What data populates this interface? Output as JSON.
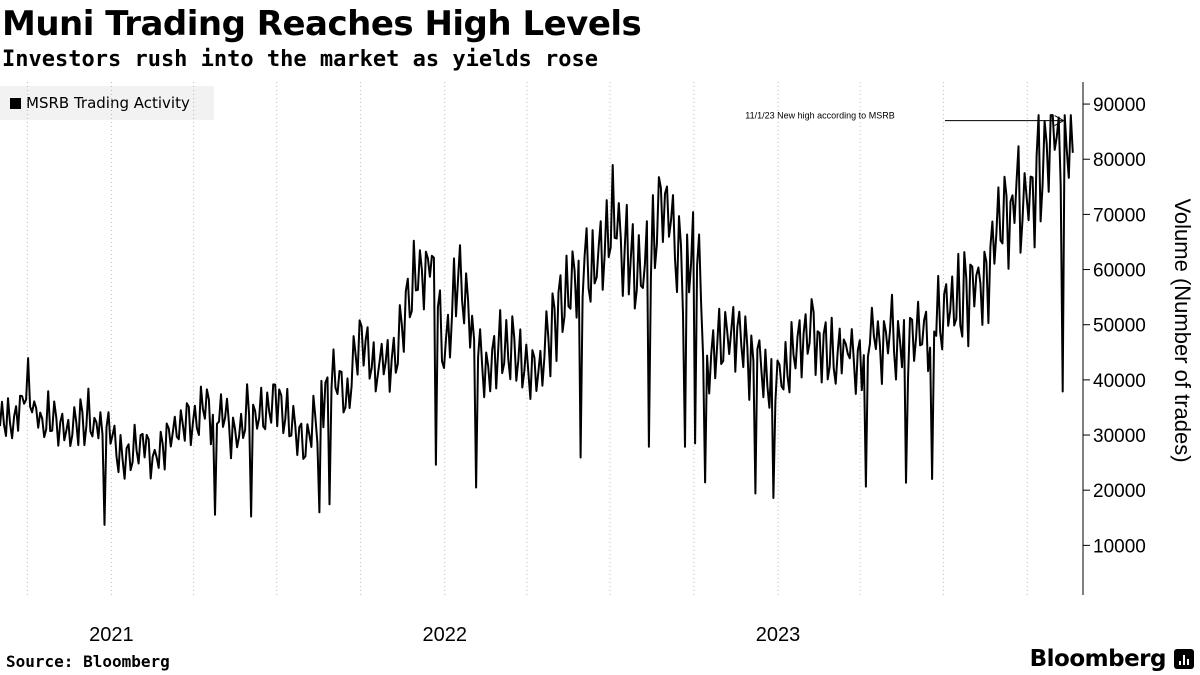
{
  "header": {
    "title": "Muni Trading Reaches High Levels",
    "subtitle": "Investors rush into the market as yields rose"
  },
  "footer": {
    "source": "Source: Bloomberg",
    "brand": "Bloomberg"
  },
  "colors": {
    "line": "#000000",
    "grid": "#bbbbbb",
    "legend_bg": "#f2f2f2"
  },
  "chart_data": {
    "type": "line",
    "legend": "MSRB Trading Activity",
    "legend_placement": "top-left",
    "ylabel": "Volume (Number of trades)",
    "y_axis_side": "right",
    "ylim": [
      1000,
      94000
    ],
    "yticks": [
      10000,
      20000,
      30000,
      40000,
      50000,
      60000,
      70000,
      80000,
      90000
    ],
    "ytick_labels": [
      "10000",
      "20000",
      "30000",
      "40000",
      "50000",
      "60000",
      "70000",
      "80000",
      "90000"
    ],
    "x_range": [
      "2020-09-01",
      "2023-12-01"
    ],
    "x_labels": [
      {
        "date": "2021-01-01",
        "label": "2021"
      },
      {
        "date": "2022-01-01",
        "label": "2022"
      },
      {
        "date": "2023-01-01",
        "label": "2023"
      }
    ],
    "grid": true,
    "grid_style": "dotted vertical quarterly",
    "annotation": {
      "text": "11/1/23 New high according to MSRB",
      "date": "2023-11-01",
      "value": 87000
    },
    "series": [
      {
        "x": [
          "2020-09-01",
          "2020-09-15",
          "2020-10-01",
          "2020-10-15",
          "2020-11-01",
          "2020-11-15",
          "2020-12-01",
          "2020-12-15",
          "2021-01-01",
          "2021-01-15",
          "2021-02-01",
          "2021-02-15",
          "2021-03-01",
          "2021-03-15",
          "2021-04-01",
          "2021-04-15",
          "2021-05-01",
          "2021-05-15",
          "2021-06-01",
          "2021-06-15",
          "2021-07-01",
          "2021-07-15",
          "2021-08-01",
          "2021-08-15",
          "2021-09-01",
          "2021-09-15",
          "2021-10-01",
          "2021-10-15",
          "2021-11-01",
          "2021-11-15",
          "2021-12-01",
          "2021-12-15",
          "2022-01-01",
          "2022-01-15",
          "2022-02-01",
          "2022-02-15",
          "2022-03-01",
          "2022-03-15",
          "2022-04-01",
          "2022-04-15",
          "2022-05-01",
          "2022-05-15",
          "2022-06-01",
          "2022-06-15",
          "2022-07-01",
          "2022-07-15",
          "2022-08-01",
          "2022-08-15",
          "2022-09-01",
          "2022-09-15",
          "2022-10-01",
          "2022-10-15",
          "2022-11-01",
          "2022-11-15",
          "2022-12-01",
          "2022-12-15",
          "2023-01-01",
          "2023-01-15",
          "2023-02-01",
          "2023-02-15",
          "2023-03-01",
          "2023-03-15",
          "2023-04-01",
          "2023-04-15",
          "2023-05-01",
          "2023-05-15",
          "2023-06-01",
          "2023-06-15",
          "2023-07-01",
          "2023-07-15",
          "2023-08-01",
          "2023-08-15",
          "2023-09-01",
          "2023-09-15",
          "2023-10-01",
          "2023-10-15",
          "2023-11-01",
          "2023-11-15"
        ],
        "values": [
          34000,
          31000,
          38000,
          32000,
          33000,
          29000,
          34000,
          31000,
          30000,
          26000,
          29000,
          25000,
          28000,
          31000,
          33000,
          34000,
          35000,
          30000,
          34000,
          33000,
          36000,
          32000,
          27000,
          35000,
          40000,
          37000,
          46000,
          41000,
          44000,
          48000,
          60000,
          63000,
          44000,
          58000,
          47000,
          41000,
          45000,
          46000,
          44000,
          40000,
          50000,
          55000,
          58000,
          62000,
          68000,
          67000,
          57000,
          63000,
          74000,
          60000,
          65000,
          45000,
          47000,
          48000,
          44000,
          42000,
          41000,
          44000,
          50000,
          47000,
          44000,
          45000,
          45000,
          47000,
          48000,
          46000,
          50000,
          48000,
          52000,
          54000,
          56000,
          58000,
          67000,
          72000,
          75000,
          78000,
          87000,
          82000
        ]
      }
    ]
  }
}
